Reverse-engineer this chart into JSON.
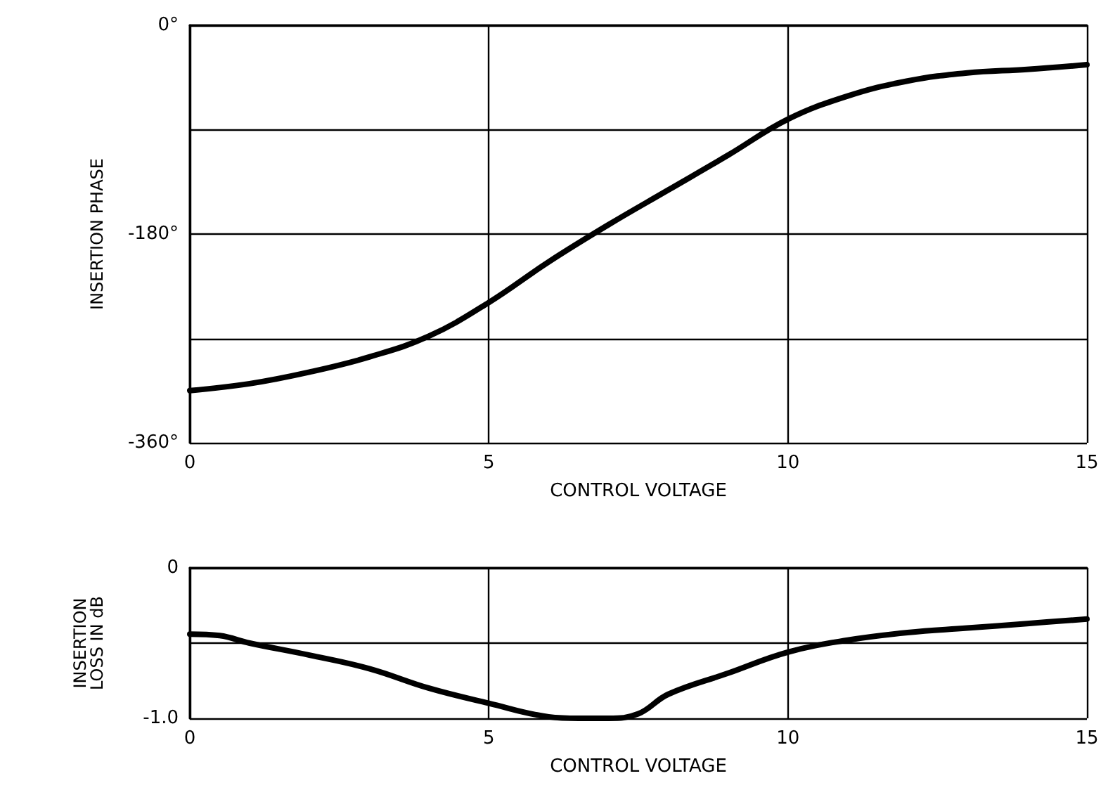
{
  "chart_data": [
    {
      "type": "line",
      "xlabel": "CONTROL VOLTAGE",
      "ylabel": "INSERTION PHASE",
      "x": [
        0,
        1,
        2,
        3,
        4,
        5,
        6,
        7,
        8,
        9,
        10,
        11,
        12,
        13,
        14,
        15
      ],
      "series": [
        {
          "color": "#000000",
          "values": [
            -315,
            -309,
            -299,
            -286,
            -268,
            -239,
            -204,
            -172,
            -142,
            -112,
            -81,
            -61,
            -48,
            -41,
            -38,
            -34
          ]
        }
      ],
      "xlim": [
        0,
        15
      ],
      "xticks": [
        0,
        5,
        10,
        15
      ],
      "ylim": [
        -360,
        0
      ],
      "yticks": [
        {
          "value": -360,
          "label": "-360°"
        },
        {
          "value": -270,
          "label": null
        },
        {
          "value": -180,
          "label": "-180°"
        },
        {
          "value": -90,
          "label": null
        },
        {
          "value": 0,
          "label": "0°"
        }
      ],
      "grid": true,
      "marker": "none",
      "line_style": "solid"
    },
    {
      "type": "line",
      "xlabel": "CONTROL VOLTAGE",
      "ylabel": "INSERTION\nLOSS IN dB",
      "x": [
        0,
        0.5,
        1,
        2,
        3,
        4,
        5,
        6,
        6.5,
        7,
        7.5,
        8,
        9,
        10,
        11,
        12,
        13,
        14,
        15
      ],
      "series": [
        {
          "color": "#000000",
          "values": [
            -0.44,
            -0.45,
            -0.5,
            -0.58,
            -0.67,
            -0.8,
            -0.9,
            -0.99,
            -1.0,
            -1.0,
            -0.97,
            -0.84,
            -0.7,
            -0.56,
            -0.48,
            -0.43,
            -0.4,
            -0.37,
            -0.34
          ]
        }
      ],
      "xlim": [
        0,
        15
      ],
      "xticks": [
        0,
        5,
        10,
        15
      ],
      "ylim": [
        -1.0,
        0
      ],
      "yticks": [
        {
          "value": -1.0,
          "label": "-1.0"
        },
        {
          "value": -0.5,
          "label": null
        },
        {
          "value": 0,
          "label": "0"
        }
      ],
      "grid": true,
      "marker": "none",
      "line_style": "solid"
    }
  ]
}
